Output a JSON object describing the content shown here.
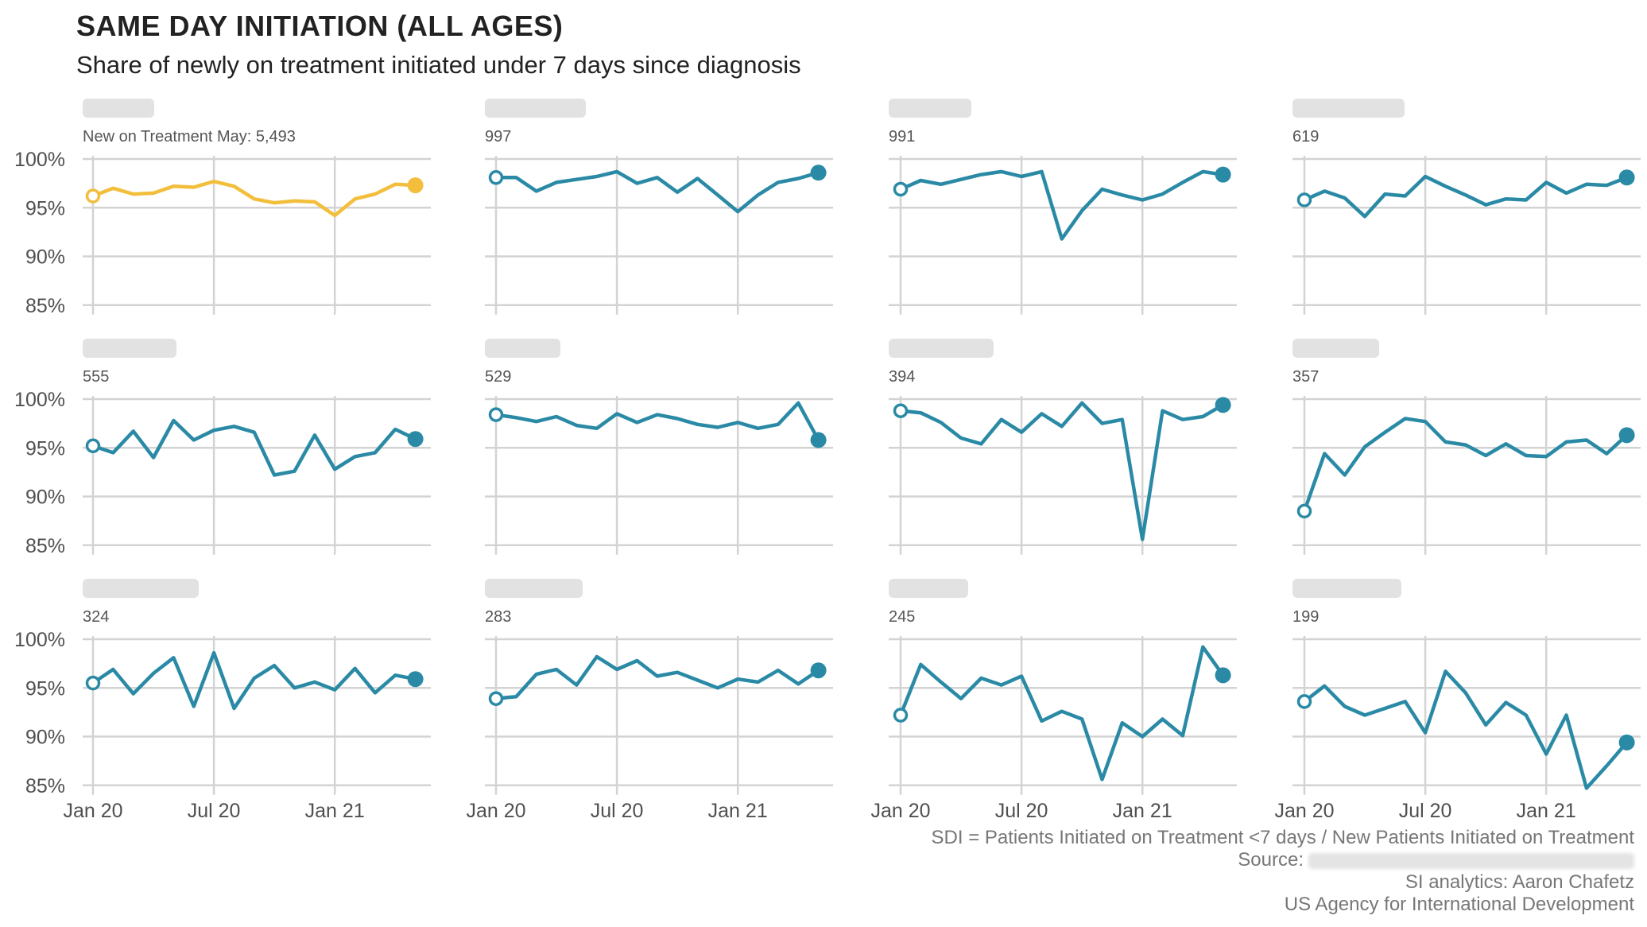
{
  "header": {
    "title": "SAME DAY INITIATION (ALL AGES)",
    "subtitle": "Share of newly on treatment initiated under 7 days since diagnosis"
  },
  "footer": {
    "definition": "SDI = Patients Initiated on Treatment <7 days / New Patients Initiated on Treatment",
    "source_label": "Source:",
    "analytics": "SI analytics: Aaron Chafetz",
    "agency": "US Agency for International Development"
  },
  "colors": {
    "highlight": "#F2BE3C",
    "series": "#2A8AA6",
    "grid": "#D3D3D3",
    "axis_text": "#505050",
    "label_text": "#555555"
  },
  "chart_data": {
    "type": "line",
    "layout": "small-multiples",
    "months": [
      "2020-01",
      "2020-02",
      "2020-03",
      "2020-04",
      "2020-05",
      "2020-06",
      "2020-07",
      "2020-08",
      "2020-09",
      "2020-10",
      "2020-11",
      "2020-12",
      "2021-01",
      "2021-02",
      "2021-03",
      "2021-04",
      "2021-05"
    ],
    "x_tick_labels": [
      "Jan 20",
      "Jul 20",
      "Jan 21"
    ],
    "x_tick_months": [
      "2020-01",
      "2020-07",
      "2021-01"
    ],
    "y_tick_labels": [
      "100%",
      "95%",
      "90%",
      "85%"
    ],
    "y_ticks": [
      100,
      95,
      90,
      85
    ],
    "ylim": [
      85,
      100
    ],
    "marker_first": "hollow-circle",
    "marker_last": "filled-circle",
    "note": "panel names are blurred in the original",
    "panels": [
      {
        "label": "New on Treatment May: 5,493",
        "highlight": true,
        "values": [
          96.2,
          97.0,
          96.4,
          96.5,
          97.2,
          97.1,
          97.7,
          97.2,
          95.9,
          95.5,
          95.7,
          95.6,
          94.2,
          95.9,
          96.4,
          97.4,
          97.3
        ]
      },
      {
        "label": "997",
        "values": [
          98.1,
          98.1,
          96.7,
          97.6,
          97.9,
          98.2,
          98.7,
          97.5,
          98.1,
          96.6,
          98.0,
          96.3,
          94.6,
          96.3,
          97.6,
          98.0,
          98.6
        ]
      },
      {
        "label": "991",
        "values": [
          96.9,
          97.8,
          97.4,
          97.9,
          98.4,
          98.7,
          98.2,
          98.7,
          91.8,
          94.7,
          96.9,
          96.3,
          95.8,
          96.4,
          97.6,
          98.7,
          98.4
        ]
      },
      {
        "label": "619",
        "values": [
          95.8,
          96.7,
          96.0,
          94.1,
          96.4,
          96.2,
          98.2,
          97.2,
          96.3,
          95.3,
          95.9,
          95.8,
          97.6,
          96.5,
          97.4,
          97.3,
          98.1
        ]
      },
      {
        "label": "555",
        "values": [
          95.2,
          94.5,
          96.7,
          94.0,
          97.8,
          95.8,
          96.8,
          97.2,
          96.6,
          92.2,
          92.6,
          96.3,
          92.8,
          94.1,
          94.5,
          96.9,
          95.9
        ]
      },
      {
        "label": "529",
        "values": [
          98.4,
          98.1,
          97.7,
          98.2,
          97.3,
          97.0,
          98.5,
          97.6,
          98.4,
          98.0,
          97.4,
          97.1,
          97.6,
          97.0,
          97.4,
          99.6,
          95.8
        ]
      },
      {
        "label": "394",
        "values": [
          98.8,
          98.6,
          97.6,
          96.0,
          95.4,
          97.9,
          96.6,
          98.5,
          97.2,
          99.6,
          97.5,
          97.9,
          85.6,
          98.8,
          97.9,
          98.2,
          99.4
        ]
      },
      {
        "label": "357",
        "values": [
          88.5,
          94.4,
          92.2,
          95.1,
          96.6,
          98.0,
          97.7,
          95.6,
          95.3,
          94.2,
          95.4,
          94.2,
          94.1,
          95.6,
          95.8,
          94.4,
          96.3
        ]
      },
      {
        "label": "324",
        "values": [
          95.5,
          96.9,
          94.4,
          96.5,
          98.1,
          93.1,
          98.6,
          92.9,
          96.0,
          97.3,
          95.0,
          95.6,
          94.8,
          97.0,
          94.5,
          96.3,
          95.9
        ]
      },
      {
        "label": "283",
        "values": [
          93.9,
          94.1,
          96.4,
          96.9,
          95.3,
          98.2,
          96.9,
          97.8,
          96.2,
          96.6,
          95.8,
          95.0,
          95.9,
          95.6,
          96.8,
          95.4,
          96.8
        ]
      },
      {
        "label": "245",
        "values": [
          92.2,
          97.4,
          95.6,
          93.9,
          96.0,
          95.3,
          96.2,
          91.6,
          92.6,
          91.8,
          85.6,
          91.4,
          90.0,
          91.8,
          90.1,
          99.2,
          96.3
        ]
      },
      {
        "label": "199",
        "values": [
          93.6,
          95.2,
          93.1,
          92.2,
          92.9,
          93.6,
          90.4,
          96.7,
          94.5,
          91.2,
          93.5,
          92.2,
          88.2,
          92.2,
          84.7,
          87.0,
          89.4
        ]
      }
    ]
  }
}
